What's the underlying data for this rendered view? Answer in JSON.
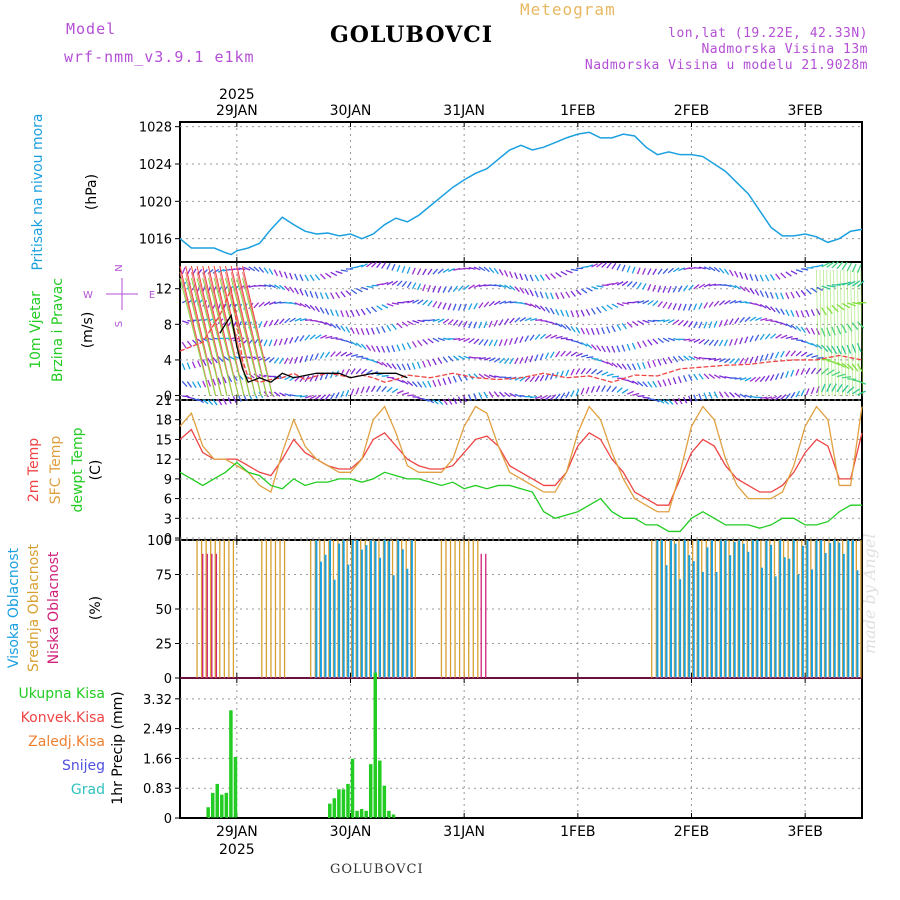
{
  "header": {
    "model_label": "Model",
    "model_name": "wrf-nmm_v3.9.1  e1km",
    "location": "GOLUBOVCI",
    "meteogram": "Meteogram",
    "lonlat": "lon,lat (19.22E, 42.33N)",
    "altitude": "Nadmorska Visina 13m",
    "altitude_model": "Nadmorska Visina u modelu 21.9028m"
  },
  "footer": {
    "location": "GOLUBOVCI",
    "watermark": "made by Angel"
  },
  "colors": {
    "pressure": "#1ba0e0",
    "wind_speed_red": "#ee4444",
    "gust": "#000000",
    "temp2m": "#ee4444",
    "sfc": "#e0a040",
    "dewpt": "#22cc22",
    "high_cloud": "#1ba0e0",
    "mid_cloud": "#d8a030",
    "low_cloud": "#d0207a",
    "precip": "#22cc22",
    "conv": "#ee4444",
    "freezing": "#f08030",
    "snow": "#5050e0",
    "hail": "#30c0c0"
  },
  "chart_data": [
    {
      "type": "line",
      "panel": "pressure",
      "ylabel_side": "Pritisak na nivou mora",
      "ylabel": "(hPa)",
      "yticks": [
        1016,
        1020,
        1024,
        1028
      ],
      "ylim": [
        1013.5,
        1028.5
      ],
      "x_top_year": "2025",
      "x_ticks": [
        "29JAN",
        "30JAN",
        "31JAN",
        "1FEB",
        "2FEB",
        "3FEB"
      ],
      "x_tick_days": [
        0.5,
        1.5,
        2.5,
        3.5,
        4.5,
        5.5
      ],
      "x_range_days": [
        0,
        6
      ],
      "series": [
        {
          "x": [
            0,
            0.1,
            0.2,
            0.3,
            0.4,
            0.45,
            0.5,
            0.6,
            0.7,
            0.8,
            0.9,
            1.0,
            1.1,
            1.2,
            1.3,
            1.4,
            1.5,
            1.6,
            1.7,
            1.8,
            1.9,
            2.0,
            2.1,
            2.2,
            2.3,
            2.4,
            2.5,
            2.6,
            2.7,
            2.8,
            2.9,
            3.0,
            3.1,
            3.2,
            3.3,
            3.4,
            3.5,
            3.6,
            3.7,
            3.8,
            3.9,
            4.0,
            4.1,
            4.2,
            4.3,
            4.4,
            4.5,
            4.6,
            4.7,
            4.8,
            4.9,
            5.0,
            5.1,
            5.2,
            5.3,
            5.4,
            5.5,
            5.6,
            5.7,
            5.8,
            5.9,
            6.0
          ],
          "y": [
            1016,
            1015,
            1015,
            1015,
            1014.5,
            1014.3,
            1014.7,
            1015,
            1015.5,
            1017,
            1018.3,
            1017.5,
            1016.8,
            1016.5,
            1016.6,
            1016.3,
            1016.5,
            1016,
            1016.5,
            1017.5,
            1018.2,
            1017.8,
            1018.5,
            1019.5,
            1020.5,
            1021.5,
            1022.3,
            1023,
            1023.5,
            1024.5,
            1025.5,
            1026,
            1025.5,
            1025.8,
            1026.3,
            1026.8,
            1027.2,
            1027.4,
            1026.8,
            1026.8,
            1027.2,
            1027,
            1025.8,
            1025,
            1025.3,
            1025,
            1025,
            1024.8,
            1024,
            1023.2,
            1022,
            1020.8,
            1019,
            1017.2,
            1016.3,
            1016.3,
            1016.5,
            1016.2,
            1015.6,
            1016,
            1016.8,
            1017
          ]
        }
      ]
    },
    {
      "type": "line",
      "panel": "wind",
      "ylabel_side": "10m Vjetar Brzina i Pravac",
      "ylabel": "(m/s)",
      "compass": {
        "n": "N",
        "s": "S",
        "e": "E",
        "w": "W"
      },
      "yticks": [
        0,
        4,
        8,
        12
      ],
      "ylim": [
        -0.5,
        15
      ],
      "series": [
        {
          "name": "speed",
          "x": [
            0,
            0.2,
            0.35,
            0.45,
            0.5,
            0.55,
            0.6,
            0.7,
            0.8,
            0.9,
            1.0,
            1.1,
            1.2,
            1.3,
            1.4,
            1.5,
            1.6,
            1.7,
            1.8,
            1.9,
            2.0,
            2.2,
            2.4,
            2.6,
            2.8,
            3.0,
            3.2,
            3.4,
            3.6,
            3.8,
            4.0,
            4.2,
            4.4,
            4.6,
            4.8,
            5.0,
            5.2,
            5.4,
            5.6,
            5.8,
            6.0
          ],
          "y": [
            5,
            6,
            9,
            12,
            8,
            4,
            2,
            1.5,
            1.8,
            2,
            2.5,
            1.8,
            2.2,
            2.5,
            2.3,
            2,
            2.3,
            2,
            1.5,
            1.8,
            2.3,
            2,
            2.5,
            2,
            1.8,
            2,
            2.5,
            2,
            2.2,
            1.5,
            2.3,
            2.2,
            3,
            3.2,
            3.4,
            3.5,
            3.8,
            4,
            4,
            4.5,
            4
          ]
        },
        {
          "name": "gust",
          "x": [
            0.35,
            0.45,
            0.5,
            0.55,
            0.6,
            0.7,
            0.8,
            0.9,
            1.0,
            1.2,
            1.4,
            1.5,
            1.7,
            1.9,
            2.0
          ],
          "y": [
            7,
            9,
            5.5,
            3,
            1.5,
            2,
            1.5,
            2.5,
            2,
            2.5,
            2.5,
            2,
            2.5,
            2.5,
            2
          ]
        }
      ],
      "arrow_rows": [
        0,
        2,
        4,
        6,
        8,
        10,
        12,
        14
      ]
    },
    {
      "type": "line",
      "panel": "temperature",
      "ylabel_side_lines": [
        "2m Temp",
        "SFC Temp",
        "dewpt Temp"
      ],
      "ylabel": "(C)",
      "yticks": [
        0,
        3,
        6,
        9,
        12,
        15,
        18,
        21
      ],
      "ylim": [
        -0.3,
        21
      ],
      "series": [
        {
          "name": "2m Temp",
          "x": [
            0,
            0.1,
            0.2,
            0.3,
            0.4,
            0.5,
            0.6,
            0.7,
            0.8,
            0.9,
            1.0,
            1.1,
            1.2,
            1.3,
            1.4,
            1.5,
            1.6,
            1.7,
            1.8,
            1.9,
            2.0,
            2.1,
            2.2,
            2.3,
            2.4,
            2.5,
            2.6,
            2.7,
            2.8,
            2.9,
            3.0,
            3.1,
            3.2,
            3.3,
            3.4,
            3.5,
            3.6,
            3.7,
            3.8,
            3.9,
            4.0,
            4.1,
            4.2,
            4.3,
            4.4,
            4.5,
            4.6,
            4.7,
            4.8,
            4.9,
            5.0,
            5.1,
            5.2,
            5.3,
            5.4,
            5.5,
            5.6,
            5.7,
            5.8,
            5.9,
            6.0
          ],
          "y": [
            15,
            16.5,
            13,
            12,
            12,
            12,
            11,
            10,
            9.5,
            12,
            15,
            13,
            12,
            11,
            10.5,
            10.5,
            12,
            15,
            16,
            14,
            12,
            11,
            10.5,
            10.5,
            11,
            13,
            15,
            15.5,
            14,
            11,
            10,
            9,
            8,
            8,
            10,
            14,
            16,
            15,
            12,
            10,
            7,
            6,
            5,
            5,
            9,
            13,
            15,
            14,
            11,
            9,
            8,
            7,
            7,
            8,
            10,
            13,
            15,
            14,
            9,
            9,
            16
          ]
        },
        {
          "name": "SFC Temp",
          "x": [
            0,
            0.1,
            0.2,
            0.3,
            0.4,
            0.5,
            0.6,
            0.7,
            0.8,
            0.9,
            1.0,
            1.1,
            1.2,
            1.3,
            1.4,
            1.5,
            1.6,
            1.7,
            1.8,
            1.9,
            2.0,
            2.1,
            2.2,
            2.3,
            2.4,
            2.5,
            2.6,
            2.7,
            2.8,
            2.9,
            3.0,
            3.1,
            3.2,
            3.3,
            3.4,
            3.5,
            3.6,
            3.7,
            3.8,
            3.9,
            4.0,
            4.1,
            4.2,
            4.3,
            4.4,
            4.5,
            4.6,
            4.7,
            4.8,
            4.9,
            5.0,
            5.1,
            5.2,
            5.3,
            5.4,
            5.5,
            5.6,
            5.7,
            5.8,
            5.9,
            6.0
          ],
          "y": [
            17,
            19,
            14,
            12,
            12,
            11,
            10,
            8,
            7,
            13,
            18,
            14,
            12,
            11,
            10,
            10,
            12,
            18,
            20,
            16,
            11,
            10,
            10,
            10,
            12,
            17,
            20,
            19,
            14,
            10,
            9,
            8,
            7,
            7,
            10,
            16,
            20,
            18,
            13,
            9,
            6,
            5,
            4,
            4,
            10,
            17,
            20,
            18,
            12,
            8,
            6,
            6,
            6,
            7,
            11,
            17,
            20,
            18,
            8,
            8,
            20
          ]
        },
        {
          "name": "dewpt Temp",
          "x": [
            0,
            0.1,
            0.2,
            0.3,
            0.4,
            0.5,
            0.6,
            0.7,
            0.8,
            0.9,
            1.0,
            1.1,
            1.2,
            1.3,
            1.4,
            1.5,
            1.6,
            1.7,
            1.8,
            1.9,
            2.0,
            2.1,
            2.2,
            2.3,
            2.4,
            2.5,
            2.6,
            2.7,
            2.8,
            2.9,
            3.0,
            3.1,
            3.2,
            3.3,
            3.4,
            3.5,
            3.6,
            3.7,
            3.8,
            3.9,
            4.0,
            4.1,
            4.2,
            4.3,
            4.4,
            4.5,
            4.6,
            4.7,
            4.8,
            4.9,
            5.0,
            5.1,
            5.2,
            5.3,
            5.4,
            5.5,
            5.6,
            5.7,
            5.8,
            5.9,
            6.0
          ],
          "y": [
            10,
            9,
            8,
            9,
            10,
            11.5,
            10,
            9.5,
            8,
            7.5,
            9,
            8,
            8.5,
            8.5,
            9,
            9,
            8.5,
            9,
            10,
            9.5,
            9,
            9,
            8.5,
            8,
            8.5,
            7.5,
            8,
            7.5,
            8,
            8,
            7.5,
            7,
            4,
            3,
            3.5,
            4,
            5,
            6,
            4,
            3,
            3,
            2,
            2,
            1,
            1,
            3,
            4,
            3,
            2,
            2,
            2,
            1.5,
            2,
            3,
            3,
            2,
            2,
            2.5,
            4,
            5,
            5
          ]
        }
      ]
    },
    {
      "type": "bar",
      "panel": "cloud",
      "ylabel_side_lines": [
        "Visoka Oblacnost",
        "Srednja Oblacnost",
        "Niska Oblacnost"
      ],
      "ylabel": "(%)",
      "yticks": [
        0,
        25,
        50,
        75,
        100
      ],
      "ylim": [
        0,
        100
      ],
      "segments": [
        {
          "name": "Srednja Oblacnost",
          "ranges": [
            [
              0.15,
              0.5
            ],
            [
              0.72,
              0.95
            ],
            [
              1.15,
              2.1
            ],
            [
              2.3,
              2.65
            ],
            [
              4.15,
              6.0
            ]
          ],
          "value": 100
        },
        {
          "name": "Visoka Oblacnost",
          "ranges": [
            [
              1.2,
              2.05
            ],
            [
              4.2,
              6.0
            ]
          ],
          "value": 100
        },
        {
          "name": "Niska Oblacnost",
          "ranges": [
            [
              0.2,
              0.35
            ],
            [
              2.65,
              2.7
            ]
          ],
          "value": 90
        }
      ]
    },
    {
      "type": "bar",
      "panel": "precip",
      "legend": [
        "Ukupna Kisa",
        "Konvek.Kisa",
        "Zaledj.Kisa",
        "Snijeg",
        "Grad"
      ],
      "ylabel": "1hr Precip (mm)",
      "yticks": [
        0,
        0.83,
        1.66,
        2.49,
        3.32
      ],
      "ylim": [
        0,
        3.9
      ],
      "x_bottom_year": "2025",
      "bars": {
        "x": [
          0.25,
          0.29,
          0.33,
          0.37,
          0.41,
          0.45,
          0.49,
          1.32,
          1.36,
          1.4,
          1.44,
          1.48,
          1.52,
          1.56,
          1.6,
          1.64,
          1.68,
          1.72,
          1.76,
          1.8,
          1.84,
          1.88
        ],
        "y": [
          0.3,
          0.7,
          0.95,
          0.65,
          0.7,
          3.0,
          1.7,
          0.4,
          0.55,
          0.8,
          0.8,
          0.95,
          1.65,
          0.2,
          0.25,
          0.2,
          1.5,
          4.05,
          1.6,
          0.9,
          0.2,
          0.1
        ]
      }
    }
  ]
}
